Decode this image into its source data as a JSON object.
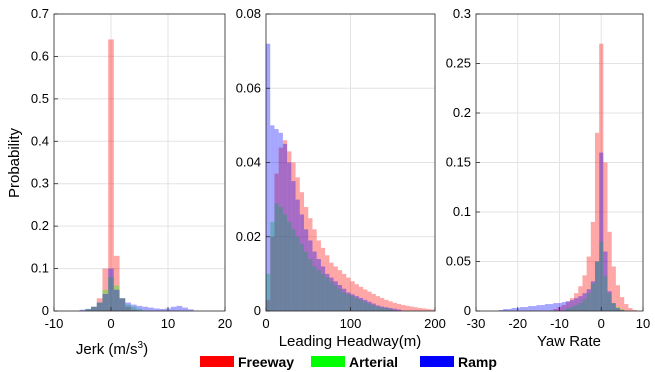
{
  "legend": {
    "items": [
      {
        "label": "Freeway",
        "color": "#ff0000"
      },
      {
        "label": "Arterial",
        "color": "#00ff00"
      },
      {
        "label": "Ramp",
        "color": "#0000ff"
      }
    ]
  },
  "chart_data": [
    {
      "type": "bar",
      "xlabel": "Jerk (m/s",
      "xlabel_sup": "3",
      "xlabel_close": ")",
      "ylabel": "Probability",
      "xlim": [
        -10,
        20
      ],
      "ylim": [
        0,
        0.7
      ],
      "xticks": [
        -10,
        0,
        10,
        20
      ],
      "yticks": [
        0,
        0.1,
        0.2,
        0.3,
        0.4,
        0.5,
        0.6,
        0.7
      ],
      "grid": true,
      "bin_width": 1,
      "series": [
        {
          "name": "Freeway",
          "color": "#ff0000",
          "x": [
            -4,
            -3,
            -2,
            -1,
            0,
            1,
            2,
            3,
            4
          ],
          "values": [
            0.003,
            0.01,
            0.03,
            0.1,
            0.64,
            0.13,
            0.03,
            0.01,
            0.003
          ]
        },
        {
          "name": "Arterial",
          "color": "#00ff00",
          "x": [
            -4,
            -3,
            -2,
            -1,
            0,
            1,
            2,
            3,
            4,
            5
          ],
          "values": [
            0.005,
            0.01,
            0.02,
            0.05,
            0.08,
            0.06,
            0.03,
            0.015,
            0.01,
            0.005
          ]
        },
        {
          "name": "Ramp",
          "color": "#0000ff",
          "x": [
            -5,
            -4,
            -3,
            -2,
            -1,
            0,
            1,
            2,
            3,
            4,
            5,
            6,
            7,
            8,
            9,
            10,
            11,
            12,
            13,
            14
          ],
          "values": [
            0.003,
            0.005,
            0.01,
            0.02,
            0.04,
            0.1,
            0.05,
            0.03,
            0.02,
            0.015,
            0.012,
            0.01,
            0.008,
            0.006,
            0.005,
            0.006,
            0.01,
            0.012,
            0.008,
            0.004
          ]
        }
      ]
    },
    {
      "type": "bar",
      "xlabel": "Leading Headway(m)",
      "xlim": [
        0,
        200
      ],
      "ylim": [
        0,
        0.08
      ],
      "xticks": [
        0,
        100,
        200
      ],
      "yticks": [
        0,
        0.02,
        0.04,
        0.06,
        0.08
      ],
      "grid": true,
      "bin_width": 5,
      "series": [
        {
          "name": "Freeway",
          "color": "#ff0000",
          "x": [
            2.5,
            7.5,
            12.5,
            17.5,
            22.5,
            27.5,
            32.5,
            37.5,
            42.5,
            47.5,
            52.5,
            57.5,
            62.5,
            67.5,
            72.5,
            77.5,
            82.5,
            87.5,
            92.5,
            97.5,
            102.5,
            107.5,
            112.5,
            117.5,
            122.5,
            127.5,
            132.5,
            137.5,
            142.5,
            147.5,
            152.5,
            157.5,
            162.5,
            167.5,
            172.5,
            177.5,
            182.5,
            187.5,
            192.5,
            197.5
          ],
          "values": [
            0.003,
            0.02,
            0.037,
            0.044,
            0.046,
            0.043,
            0.04,
            0.036,
            0.032,
            0.028,
            0.025,
            0.022,
            0.019,
            0.017,
            0.015,
            0.013,
            0.012,
            0.011,
            0.01,
            0.009,
            0.008,
            0.0072,
            0.0065,
            0.0058,
            0.0052,
            0.0046,
            0.004,
            0.0035,
            0.003,
            0.0026,
            0.0022,
            0.0019,
            0.0016,
            0.0014,
            0.0012,
            0.001,
            0.0008,
            0.0007,
            0.0005,
            0.0004
          ]
        },
        {
          "name": "Arterial",
          "color": "#00ff00",
          "x": [
            2.5,
            7.5,
            12.5,
            17.5,
            22.5,
            27.5,
            32.5,
            37.5,
            42.5,
            47.5,
            52.5,
            57.5,
            62.5,
            67.5,
            72.5,
            77.5,
            82.5,
            87.5,
            92.5,
            97.5,
            102.5,
            107.5,
            112.5,
            117.5,
            122.5,
            127.5,
            132.5,
            137.5,
            142.5,
            147.5
          ],
          "values": [
            0.01,
            0.024,
            0.029,
            0.028,
            0.026,
            0.024,
            0.022,
            0.02,
            0.018,
            0.016,
            0.014,
            0.012,
            0.011,
            0.01,
            0.009,
            0.008,
            0.007,
            0.006,
            0.005,
            0.0045,
            0.004,
            0.0034,
            0.003,
            0.0025,
            0.002,
            0.0016,
            0.0012,
            0.001,
            0.0008,
            0.0005
          ]
        },
        {
          "name": "Ramp",
          "color": "#0000ff",
          "x": [
            2.5,
            7.5,
            12.5,
            17.5,
            22.5,
            27.5,
            32.5,
            37.5,
            42.5,
            47.5,
            52.5,
            57.5,
            62.5,
            67.5,
            72.5,
            77.5,
            82.5,
            87.5,
            92.5,
            97.5,
            102.5,
            107.5,
            112.5,
            117.5,
            122.5,
            127.5,
            132.5,
            137.5,
            142.5,
            147.5,
            152.5,
            157.5
          ],
          "values": [
            0.072,
            0.05,
            0.049,
            0.048,
            0.045,
            0.04,
            0.035,
            0.03,
            0.026,
            0.022,
            0.019,
            0.016,
            0.014,
            0.012,
            0.01,
            0.009,
            0.008,
            0.007,
            0.006,
            0.005,
            0.0045,
            0.004,
            0.0035,
            0.003,
            0.0025,
            0.002,
            0.0015,
            0.0012,
            0.001,
            0.0008,
            0.0006,
            0.0004
          ]
        }
      ]
    },
    {
      "type": "bar",
      "xlabel": "Yaw Rate",
      "xlim": [
        -30,
        10
      ],
      "ylim": [
        0,
        0.3
      ],
      "xticks": [
        -30,
        -20,
        -10,
        0,
        10
      ],
      "yticks": [
        0,
        0.05,
        0.1,
        0.15,
        0.2,
        0.25,
        0.3
      ],
      "grid": true,
      "bin_width": 1,
      "series": [
        {
          "name": "Freeway",
          "color": "#ff0000",
          "x": [
            -11,
            -10,
            -9,
            -8,
            -7,
            -6,
            -5,
            -4,
            -3,
            -2,
            -1,
            0,
            1,
            2,
            3,
            4,
            5,
            6,
            7,
            8
          ],
          "values": [
            0.002,
            0.004,
            0.006,
            0.009,
            0.013,
            0.018,
            0.025,
            0.036,
            0.055,
            0.09,
            0.18,
            0.27,
            0.15,
            0.08,
            0.045,
            0.026,
            0.014,
            0.007,
            0.003,
            0.001
          ]
        },
        {
          "name": "Arterial",
          "color": "#00ff00",
          "x": [
            -8,
            -7,
            -6,
            -5,
            -4,
            -3,
            -2,
            -1,
            0,
            1,
            2,
            3,
            4,
            5
          ],
          "values": [
            0.003,
            0.004,
            0.006,
            0.008,
            0.012,
            0.018,
            0.028,
            0.05,
            0.07,
            0.035,
            0.018,
            0.008,
            0.004,
            0.002
          ]
        },
        {
          "name": "Ramp",
          "color": "#0000ff",
          "x": [
            -24,
            -23,
            -22,
            -21,
            -20,
            -19,
            -18,
            -17,
            -16,
            -15,
            -14,
            -13,
            -12,
            -11,
            -10,
            -9,
            -8,
            -7,
            -6,
            -5,
            -4,
            -3,
            -2,
            -1,
            0,
            1,
            2,
            3,
            4,
            5
          ],
          "values": [
            0.001,
            0.002,
            0.002,
            0.003,
            0.003,
            0.004,
            0.004,
            0.005,
            0.005,
            0.006,
            0.006,
            0.007,
            0.007,
            0.008,
            0.008,
            0.009,
            0.01,
            0.011,
            0.013,
            0.015,
            0.018,
            0.022,
            0.03,
            0.05,
            0.16,
            0.06,
            0.02,
            0.008,
            0.003,
            0.001
          ]
        }
      ]
    }
  ]
}
